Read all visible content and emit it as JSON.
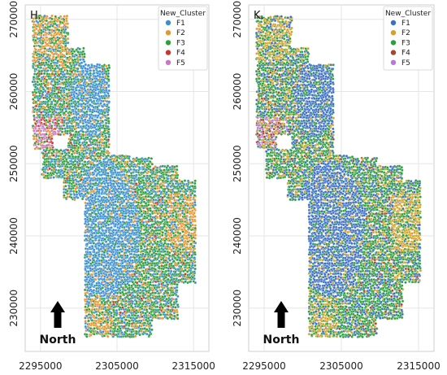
{
  "chart_data": [
    {
      "type": "scatter",
      "panel_label": "H.",
      "legend": {
        "title": "New_Cluster",
        "placement": "top-right"
      },
      "series": [
        {
          "name": "F1",
          "color": "#3b8fd1"
        },
        {
          "name": "F2",
          "color": "#e8962e"
        },
        {
          "name": "F3",
          "color": "#2f9e3f"
        },
        {
          "name": "F4",
          "color": "#c9352f"
        },
        {
          "name": "F5",
          "color": "#c879c4"
        }
      ],
      "xlim": [
        2293000,
        2317000
      ],
      "ylim": [
        224000,
        272000
      ],
      "xticks": [
        2295000,
        2305000,
        2315000
      ],
      "xtick_labels": [
        "2295000",
        "2305000",
        "2315000"
      ],
      "yticks": [
        230000,
        240000,
        250000,
        260000,
        270000
      ],
      "ytick_labels": [
        "230000",
        "240000",
        "250000",
        "260000",
        "270000"
      ],
      "north_arrow": "North"
    },
    {
      "type": "scatter",
      "panel_label": "K.",
      "legend": {
        "title": "New_Cluster",
        "placement": "top-right"
      },
      "series": [
        {
          "name": "F1",
          "color": "#3b6fc4"
        },
        {
          "name": "F2",
          "color": "#d3a22a"
        },
        {
          "name": "F3",
          "color": "#2f9e3f"
        },
        {
          "name": "F4",
          "color": "#a5462e"
        },
        {
          "name": "F5",
          "color": "#b77bd6"
        }
      ],
      "xlim": [
        2293000,
        2317000
      ],
      "ylim": [
        224000,
        272000
      ],
      "xticks": [
        2295000,
        2305000,
        2315000
      ],
      "xtick_labels": [
        "2295000",
        "2305000",
        "2315000"
      ],
      "yticks": [
        230000,
        240000,
        250000,
        260000,
        270000
      ],
      "ytick_labels": [
        "230000",
        "240000",
        "250000",
        "260000",
        "270000"
      ],
      "north_arrow": "North"
    }
  ]
}
